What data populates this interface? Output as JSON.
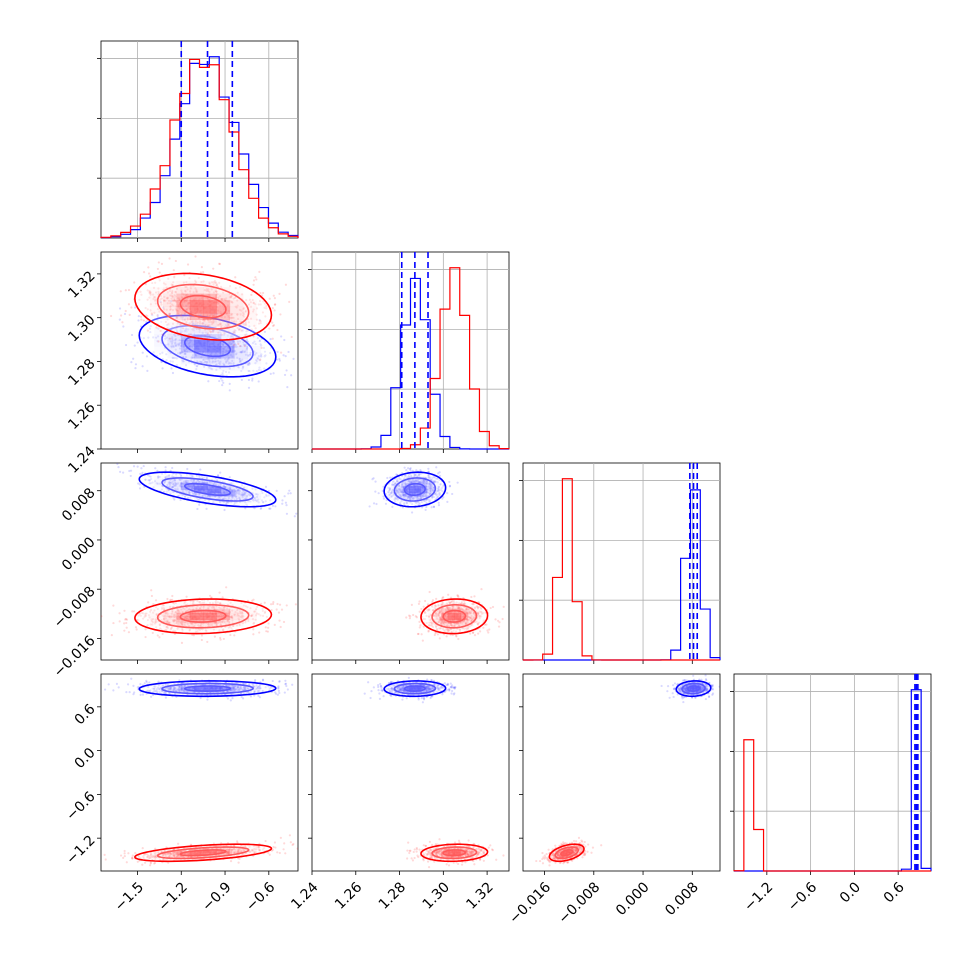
{
  "chart_data": {
    "type": "corner",
    "grid": true,
    "colors": {
      "blue": "#0000ff",
      "red": "#ff0000",
      "grid": "#b0b0b0"
    },
    "series": [
      {
        "color": "#0000ff",
        "means": [
          -1.02,
          1.287,
          0.0082,
          0.85
        ],
        "sds": [
          0.2,
          0.006,
          0.0012,
          0.045
        ],
        "rho": [
          [
            1,
            -0.35,
            -0.6,
            0.05
          ],
          [
            -0.35,
            1,
            0.1,
            0.05
          ],
          [
            -0.6,
            0.1,
            1,
            0.1
          ],
          [
            0.05,
            0.05,
            0.1,
            1
          ]
        ],
        "quantiles": [
          [
            -1.2,
            -1.02,
            -0.85
          ],
          [
            1.281,
            1.287,
            1.293
          ],
          [
            0.0076,
            0.0082,
            0.0088
          ],
          [
            0.83,
            0.85,
            0.87
          ]
        ]
      },
      {
        "color": "#ff0000",
        "means": [
          -1.05,
          1.305,
          -0.0124,
          -1.4
        ],
        "sds": [
          0.2,
          0.0065,
          0.0012,
          0.05
        ],
        "rho": [
          [
            1,
            -0.25,
            0.1,
            0.5
          ],
          [
            -0.25,
            1,
            0.05,
            0.1
          ],
          [
            0.1,
            0.05,
            1,
            0.45
          ],
          [
            0.5,
            0.1,
            0.45,
            1
          ]
        ]
      }
    ],
    "params": [
      {
        "range": [
          -1.75,
          -0.4
        ],
        "ticks": [
          -1.5,
          -1.2,
          -0.9,
          -0.6
        ],
        "tick_labels": [
          "−1.5",
          "−1.2",
          "−0.9",
          "−0.6"
        ]
      },
      {
        "range": [
          1.24,
          1.33
        ],
        "ticks": [
          1.24,
          1.26,
          1.28,
          1.3,
          1.32
        ],
        "tick_labels": [
          "1.24",
          "1.26",
          "1.28",
          "1.30",
          "1.32"
        ]
      },
      {
        "range": [
          -0.0195,
          0.0125
        ],
        "ticks": [
          -0.016,
          -0.008,
          0.0,
          0.008
        ],
        "tick_labels": [
          "−0.016",
          "−0.008",
          "0.000",
          "0.008"
        ]
      },
      {
        "range": [
          -1.65,
          1.05
        ],
        "ticks": [
          -1.2,
          -0.6,
          0.0,
          0.6
        ],
        "tick_labels": [
          "−1.2",
          "−0.6",
          "0.0",
          "0.6"
        ]
      }
    ]
  }
}
